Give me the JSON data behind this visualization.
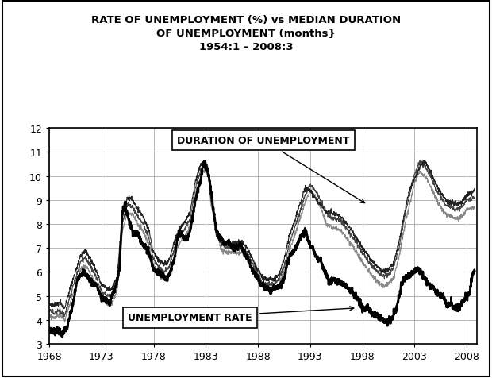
{
  "title_line1": "RATE OF UNEMPLOYMENT (%) vs MEDIAN DURATION",
  "title_line2": "OF UNEMPLOYMENT (months}",
  "title_line3": "1954:1 – 2008:3",
  "xlim": [
    1968,
    2009
  ],
  "ylim": [
    3,
    12
  ],
  "yticks": [
    3,
    4,
    5,
    6,
    7,
    8,
    9,
    10,
    11,
    12
  ],
  "xticks": [
    1968,
    1973,
    1978,
    1983,
    1988,
    1993,
    1998,
    2003,
    2008
  ],
  "label_duration": "DURATION OF UNEMPLOYMENT",
  "label_unemp": "UNEMPLOYMENT RATE",
  "unemp_rate": [
    [
      1968.0,
      3.55
    ],
    [
      1968.25,
      3.6
    ],
    [
      1968.5,
      3.5
    ],
    [
      1968.75,
      3.6
    ],
    [
      1969.0,
      3.5
    ],
    [
      1969.25,
      3.4
    ],
    [
      1969.5,
      3.6
    ],
    [
      1969.75,
      3.7
    ],
    [
      1970.0,
      4.2
    ],
    [
      1970.25,
      4.6
    ],
    [
      1970.5,
      5.2
    ],
    [
      1970.75,
      5.8
    ],
    [
      1971.0,
      5.9
    ],
    [
      1971.25,
      6.0
    ],
    [
      1971.5,
      5.9
    ],
    [
      1971.75,
      5.8
    ],
    [
      1972.0,
      5.6
    ],
    [
      1972.25,
      5.5
    ],
    [
      1972.5,
      5.5
    ],
    [
      1972.75,
      5.2
    ],
    [
      1973.0,
      4.9
    ],
    [
      1973.25,
      4.9
    ],
    [
      1973.5,
      4.8
    ],
    [
      1973.75,
      4.7
    ],
    [
      1974.0,
      5.0
    ],
    [
      1974.25,
      5.2
    ],
    [
      1974.5,
      5.6
    ],
    [
      1974.75,
      6.2
    ],
    [
      1975.0,
      8.5
    ],
    [
      1975.25,
      8.8
    ],
    [
      1975.5,
      8.4
    ],
    [
      1975.75,
      8.0
    ],
    [
      1976.0,
      7.7
    ],
    [
      1976.25,
      7.6
    ],
    [
      1976.5,
      7.6
    ],
    [
      1976.75,
      7.4
    ],
    [
      1977.0,
      7.1
    ],
    [
      1977.25,
      7.0
    ],
    [
      1977.5,
      6.9
    ],
    [
      1977.75,
      6.5
    ],
    [
      1978.0,
      6.1
    ],
    [
      1978.25,
      6.0
    ],
    [
      1978.5,
      6.0
    ],
    [
      1978.75,
      5.9
    ],
    [
      1979.0,
      5.8
    ],
    [
      1979.25,
      5.7
    ],
    [
      1979.5,
      5.9
    ],
    [
      1979.75,
      6.2
    ],
    [
      1980.0,
      6.5
    ],
    [
      1980.25,
      7.3
    ],
    [
      1980.5,
      7.7
    ],
    [
      1980.75,
      7.5
    ],
    [
      1981.0,
      7.4
    ],
    [
      1981.25,
      7.4
    ],
    [
      1981.5,
      7.7
    ],
    [
      1981.75,
      8.3
    ],
    [
      1982.0,
      9.0
    ],
    [
      1982.25,
      9.5
    ],
    [
      1982.5,
      9.8
    ],
    [
      1982.75,
      10.5
    ],
    [
      1983.0,
      10.4
    ],
    [
      1983.25,
      10.1
    ],
    [
      1983.5,
      9.4
    ],
    [
      1983.75,
      8.5
    ],
    [
      1984.0,
      7.8
    ],
    [
      1984.25,
      7.5
    ],
    [
      1984.5,
      7.4
    ],
    [
      1984.75,
      7.2
    ],
    [
      1985.0,
      7.2
    ],
    [
      1985.25,
      7.3
    ],
    [
      1985.5,
      7.0
    ],
    [
      1985.75,
      7.0
    ],
    [
      1986.0,
      7.0
    ],
    [
      1986.25,
      7.2
    ],
    [
      1986.5,
      7.0
    ],
    [
      1986.75,
      6.7
    ],
    [
      1987.0,
      6.6
    ],
    [
      1987.25,
      6.3
    ],
    [
      1987.5,
      6.0
    ],
    [
      1987.75,
      5.9
    ],
    [
      1988.0,
      5.7
    ],
    [
      1988.25,
      5.5
    ],
    [
      1988.5,
      5.4
    ],
    [
      1988.75,
      5.3
    ],
    [
      1989.0,
      5.3
    ],
    [
      1989.25,
      5.2
    ],
    [
      1989.5,
      5.3
    ],
    [
      1989.75,
      5.4
    ],
    [
      1990.0,
      5.4
    ],
    [
      1990.25,
      5.5
    ],
    [
      1990.5,
      5.8
    ],
    [
      1990.75,
      6.2
    ],
    [
      1991.0,
      6.6
    ],
    [
      1991.25,
      6.8
    ],
    [
      1991.5,
      6.9
    ],
    [
      1991.75,
      7.1
    ],
    [
      1992.0,
      7.4
    ],
    [
      1992.25,
      7.6
    ],
    [
      1992.5,
      7.7
    ],
    [
      1992.75,
      7.4
    ],
    [
      1993.0,
      7.1
    ],
    [
      1993.25,
      7.0
    ],
    [
      1993.5,
      6.7
    ],
    [
      1993.75,
      6.5
    ],
    [
      1994.0,
      6.5
    ],
    [
      1994.25,
      6.1
    ],
    [
      1994.5,
      6.0
    ],
    [
      1994.75,
      5.6
    ],
    [
      1995.0,
      5.6
    ],
    [
      1995.25,
      5.7
    ],
    [
      1995.5,
      5.6
    ],
    [
      1995.75,
      5.6
    ],
    [
      1996.0,
      5.5
    ],
    [
      1996.25,
      5.5
    ],
    [
      1996.5,
      5.4
    ],
    [
      1996.75,
      5.3
    ],
    [
      1997.0,
      5.2
    ],
    [
      1997.25,
      5.0
    ],
    [
      1997.5,
      4.9
    ],
    [
      1997.75,
      4.7
    ],
    [
      1998.0,
      4.5
    ],
    [
      1998.25,
      4.4
    ],
    [
      1998.5,
      4.5
    ],
    [
      1998.75,
      4.4
    ],
    [
      1999.0,
      4.2
    ],
    [
      1999.25,
      4.2
    ],
    [
      1999.5,
      4.2
    ],
    [
      1999.75,
      4.1
    ],
    [
      2000.0,
      4.0
    ],
    [
      2000.25,
      3.9
    ],
    [
      2000.5,
      4.0
    ],
    [
      2000.75,
      4.0
    ],
    [
      2001.0,
      4.2
    ],
    [
      2001.25,
      4.5
    ],
    [
      2001.5,
      4.9
    ],
    [
      2001.75,
      5.5
    ],
    [
      2002.0,
      5.7
    ],
    [
      2002.25,
      5.8
    ],
    [
      2002.5,
      5.9
    ],
    [
      2002.75,
      6.0
    ],
    [
      2003.0,
      6.0
    ],
    [
      2003.25,
      6.1
    ],
    [
      2003.5,
      6.1
    ],
    [
      2003.75,
      5.9
    ],
    [
      2004.0,
      5.7
    ],
    [
      2004.25,
      5.6
    ],
    [
      2004.5,
      5.4
    ],
    [
      2004.75,
      5.4
    ],
    [
      2005.0,
      5.2
    ],
    [
      2005.25,
      5.1
    ],
    [
      2005.5,
      5.0
    ],
    [
      2005.75,
      5.0
    ],
    [
      2006.0,
      4.7
    ],
    [
      2006.25,
      4.6
    ],
    [
      2006.5,
      4.7
    ],
    [
      2006.75,
      4.5
    ],
    [
      2007.0,
      4.5
    ],
    [
      2007.25,
      4.5
    ],
    [
      2007.5,
      4.7
    ],
    [
      2007.75,
      4.9
    ],
    [
      2008.0,
      5.0
    ],
    [
      2008.25,
      5.1
    ],
    [
      2008.5,
      5.8
    ],
    [
      2008.75,
      6.1
    ]
  ],
  "duration1": [
    [
      1968.0,
      4.4
    ],
    [
      1968.5,
      4.3
    ],
    [
      1969.0,
      4.4
    ],
    [
      1969.5,
      4.2
    ],
    [
      1970.0,
      5.0
    ],
    [
      1970.5,
      5.7
    ],
    [
      1971.0,
      6.4
    ],
    [
      1971.5,
      6.6
    ],
    [
      1972.0,
      6.2
    ],
    [
      1972.5,
      5.8
    ],
    [
      1973.0,
      5.2
    ],
    [
      1973.5,
      5.0
    ],
    [
      1974.0,
      5.0
    ],
    [
      1974.5,
      5.5
    ],
    [
      1975.0,
      8.0
    ],
    [
      1975.5,
      8.8
    ],
    [
      1976.0,
      8.7
    ],
    [
      1976.5,
      8.3
    ],
    [
      1977.0,
      8.0
    ],
    [
      1977.5,
      7.5
    ],
    [
      1978.0,
      6.5
    ],
    [
      1978.5,
      6.2
    ],
    [
      1979.0,
      6.0
    ],
    [
      1979.5,
      6.2
    ],
    [
      1980.0,
      7.0
    ],
    [
      1980.5,
      7.5
    ],
    [
      1981.0,
      7.8
    ],
    [
      1981.5,
      8.2
    ],
    [
      1982.0,
      9.5
    ],
    [
      1982.5,
      10.2
    ],
    [
      1983.0,
      10.6
    ],
    [
      1983.25,
      10.3
    ],
    [
      1983.5,
      9.0
    ],
    [
      1984.0,
      7.7
    ],
    [
      1984.5,
      7.2
    ],
    [
      1985.0,
      7.0
    ],
    [
      1985.5,
      7.0
    ],
    [
      1986.0,
      7.0
    ],
    [
      1986.5,
      7.0
    ],
    [
      1987.0,
      6.8
    ],
    [
      1987.5,
      6.3
    ],
    [
      1988.0,
      5.9
    ],
    [
      1988.5,
      5.5
    ],
    [
      1989.0,
      5.5
    ],
    [
      1989.5,
      5.5
    ],
    [
      1990.0,
      5.7
    ],
    [
      1990.5,
      6.2
    ],
    [
      1991.0,
      7.2
    ],
    [
      1991.5,
      7.8
    ],
    [
      1992.0,
      8.5
    ],
    [
      1992.5,
      9.2
    ],
    [
      1993.0,
      9.6
    ],
    [
      1993.5,
      9.4
    ],
    [
      1994.0,
      9.0
    ],
    [
      1994.5,
      8.5
    ],
    [
      1995.0,
      8.3
    ],
    [
      1995.5,
      8.2
    ],
    [
      1996.0,
      8.1
    ],
    [
      1996.5,
      7.8
    ],
    [
      1997.0,
      7.5
    ],
    [
      1997.5,
      7.2
    ],
    [
      1998.0,
      6.8
    ],
    [
      1998.5,
      6.5
    ],
    [
      1999.0,
      6.2
    ],
    [
      1999.5,
      6.0
    ],
    [
      2000.0,
      5.8
    ],
    [
      2000.5,
      5.9
    ],
    [
      2001.0,
      6.2
    ],
    [
      2001.5,
      7.0
    ],
    [
      2002.0,
      8.2
    ],
    [
      2002.5,
      9.2
    ],
    [
      2003.0,
      10.1
    ],
    [
      2003.5,
      10.6
    ],
    [
      2004.0,
      10.4
    ],
    [
      2004.5,
      10.0
    ],
    [
      2005.0,
      9.5
    ],
    [
      2005.5,
      9.1
    ],
    [
      2006.0,
      8.8
    ],
    [
      2006.5,
      8.7
    ],
    [
      2007.0,
      8.6
    ],
    [
      2007.5,
      8.7
    ],
    [
      2008.0,
      9.0
    ],
    [
      2008.75,
      9.1
    ]
  ],
  "duration2": [
    [
      1968.0,
      4.7
    ],
    [
      1968.5,
      4.6
    ],
    [
      1969.0,
      4.7
    ],
    [
      1969.5,
      4.5
    ],
    [
      1970.0,
      5.3
    ],
    [
      1970.5,
      6.0
    ],
    [
      1971.0,
      6.7
    ],
    [
      1971.5,
      6.9
    ],
    [
      1972.0,
      6.5
    ],
    [
      1972.5,
      6.1
    ],
    [
      1973.0,
      5.5
    ],
    [
      1973.5,
      5.3
    ],
    [
      1974.0,
      5.3
    ],
    [
      1974.5,
      5.8
    ],
    [
      1975.0,
      8.3
    ],
    [
      1975.5,
      9.1
    ],
    [
      1976.0,
      9.0
    ],
    [
      1976.5,
      8.6
    ],
    [
      1977.0,
      8.3
    ],
    [
      1977.5,
      7.8
    ],
    [
      1978.0,
      6.8
    ],
    [
      1978.5,
      6.5
    ],
    [
      1979.0,
      6.3
    ],
    [
      1979.5,
      6.5
    ],
    [
      1980.0,
      7.3
    ],
    [
      1980.5,
      7.8
    ],
    [
      1981.0,
      8.1
    ],
    [
      1981.5,
      8.5
    ],
    [
      1982.0,
      9.8
    ],
    [
      1982.5,
      10.5
    ],
    [
      1983.0,
      10.5
    ],
    [
      1983.25,
      10.2
    ],
    [
      1983.5,
      9.2
    ],
    [
      1984.0,
      7.5
    ],
    [
      1984.5,
      7.2
    ],
    [
      1985.0,
      7.2
    ],
    [
      1985.5,
      7.2
    ],
    [
      1986.0,
      7.2
    ],
    [
      1986.5,
      7.2
    ],
    [
      1987.0,
      7.0
    ],
    [
      1987.5,
      6.5
    ],
    [
      1988.0,
      6.1
    ],
    [
      1988.5,
      5.7
    ],
    [
      1989.0,
      5.7
    ],
    [
      1989.5,
      5.7
    ],
    [
      1990.0,
      5.9
    ],
    [
      1990.5,
      6.5
    ],
    [
      1991.0,
      7.5
    ],
    [
      1991.5,
      8.1
    ],
    [
      1992.0,
      8.8
    ],
    [
      1992.5,
      9.5
    ],
    [
      1993.0,
      9.4
    ],
    [
      1993.5,
      9.1
    ],
    [
      1994.0,
      8.8
    ],
    [
      1994.5,
      8.5
    ],
    [
      1995.0,
      8.5
    ],
    [
      1995.5,
      8.4
    ],
    [
      1996.0,
      8.3
    ],
    [
      1996.5,
      8.0
    ],
    [
      1997.0,
      7.7
    ],
    [
      1997.5,
      7.4
    ],
    [
      1998.0,
      7.0
    ],
    [
      1998.5,
      6.7
    ],
    [
      1999.0,
      6.4
    ],
    [
      1999.5,
      6.2
    ],
    [
      2000.0,
      6.0
    ],
    [
      2000.5,
      6.1
    ],
    [
      2001.0,
      6.4
    ],
    [
      2001.5,
      7.2
    ],
    [
      2002.0,
      8.4
    ],
    [
      2002.5,
      9.4
    ],
    [
      2003.0,
      9.9
    ],
    [
      2003.5,
      10.4
    ],
    [
      2004.0,
      10.6
    ],
    [
      2004.5,
      10.2
    ],
    [
      2005.0,
      9.7
    ],
    [
      2005.5,
      9.3
    ],
    [
      2006.0,
      9.0
    ],
    [
      2006.5,
      8.9
    ],
    [
      2007.0,
      8.8
    ],
    [
      2007.5,
      8.9
    ],
    [
      2008.0,
      9.2
    ],
    [
      2008.75,
      9.4
    ]
  ],
  "duration3": [
    [
      1968.0,
      4.2
    ],
    [
      1968.5,
      4.1
    ],
    [
      1969.0,
      4.2
    ],
    [
      1969.5,
      4.0
    ],
    [
      1970.0,
      4.7
    ],
    [
      1970.5,
      5.4
    ],
    [
      1971.0,
      6.1
    ],
    [
      1971.5,
      6.3
    ],
    [
      1972.0,
      5.9
    ],
    [
      1972.5,
      5.5
    ],
    [
      1973.0,
      4.9
    ],
    [
      1973.5,
      4.7
    ],
    [
      1974.0,
      4.7
    ],
    [
      1974.5,
      5.2
    ],
    [
      1975.0,
      7.7
    ],
    [
      1975.5,
      8.5
    ],
    [
      1976.0,
      8.4
    ],
    [
      1976.5,
      8.0
    ],
    [
      1977.0,
      7.7
    ],
    [
      1977.5,
      7.2
    ],
    [
      1978.0,
      6.2
    ],
    [
      1978.5,
      5.9
    ],
    [
      1979.0,
      5.7
    ],
    [
      1979.5,
      5.9
    ],
    [
      1980.0,
      6.7
    ],
    [
      1980.5,
      7.2
    ],
    [
      1981.0,
      7.5
    ],
    [
      1981.5,
      7.9
    ],
    [
      1982.0,
      9.2
    ],
    [
      1982.5,
      9.9
    ],
    [
      1983.0,
      10.4
    ],
    [
      1983.25,
      10.1
    ],
    [
      1983.5,
      8.8
    ],
    [
      1984.0,
      7.9
    ],
    [
      1984.5,
      6.9
    ],
    [
      1985.0,
      6.8
    ],
    [
      1985.5,
      6.8
    ],
    [
      1986.0,
      6.8
    ],
    [
      1986.5,
      6.8
    ],
    [
      1987.0,
      6.6
    ],
    [
      1987.5,
      6.1
    ],
    [
      1988.0,
      5.7
    ],
    [
      1988.5,
      5.3
    ],
    [
      1989.0,
      5.3
    ],
    [
      1989.5,
      5.3
    ],
    [
      1990.0,
      5.5
    ],
    [
      1990.5,
      6.0
    ],
    [
      1991.0,
      6.9
    ],
    [
      1991.5,
      7.5
    ],
    [
      1992.0,
      8.2
    ],
    [
      1992.5,
      8.9
    ],
    [
      1993.0,
      9.4
    ],
    [
      1993.5,
      9.1
    ],
    [
      1994.0,
      8.7
    ],
    [
      1994.5,
      8.0
    ],
    [
      1995.0,
      7.9
    ],
    [
      1995.5,
      7.8
    ],
    [
      1996.0,
      7.7
    ],
    [
      1996.5,
      7.4
    ],
    [
      1997.0,
      7.1
    ],
    [
      1997.5,
      6.8
    ],
    [
      1998.0,
      6.4
    ],
    [
      1998.5,
      6.1
    ],
    [
      1999.0,
      5.8
    ],
    [
      1999.5,
      5.6
    ],
    [
      2000.0,
      5.4
    ],
    [
      2000.5,
      5.5
    ],
    [
      2001.0,
      5.8
    ],
    [
      2001.5,
      6.6
    ],
    [
      2002.0,
      7.8
    ],
    [
      2002.5,
      8.8
    ],
    [
      2003.0,
      9.7
    ],
    [
      2003.5,
      10.2
    ],
    [
      2004.0,
      10.0
    ],
    [
      2004.5,
      9.6
    ],
    [
      2005.0,
      9.1
    ],
    [
      2005.5,
      8.7
    ],
    [
      2006.0,
      8.4
    ],
    [
      2006.5,
      8.3
    ],
    [
      2007.0,
      8.2
    ],
    [
      2007.5,
      8.3
    ],
    [
      2008.0,
      8.6
    ],
    [
      2008.75,
      8.7
    ]
  ]
}
